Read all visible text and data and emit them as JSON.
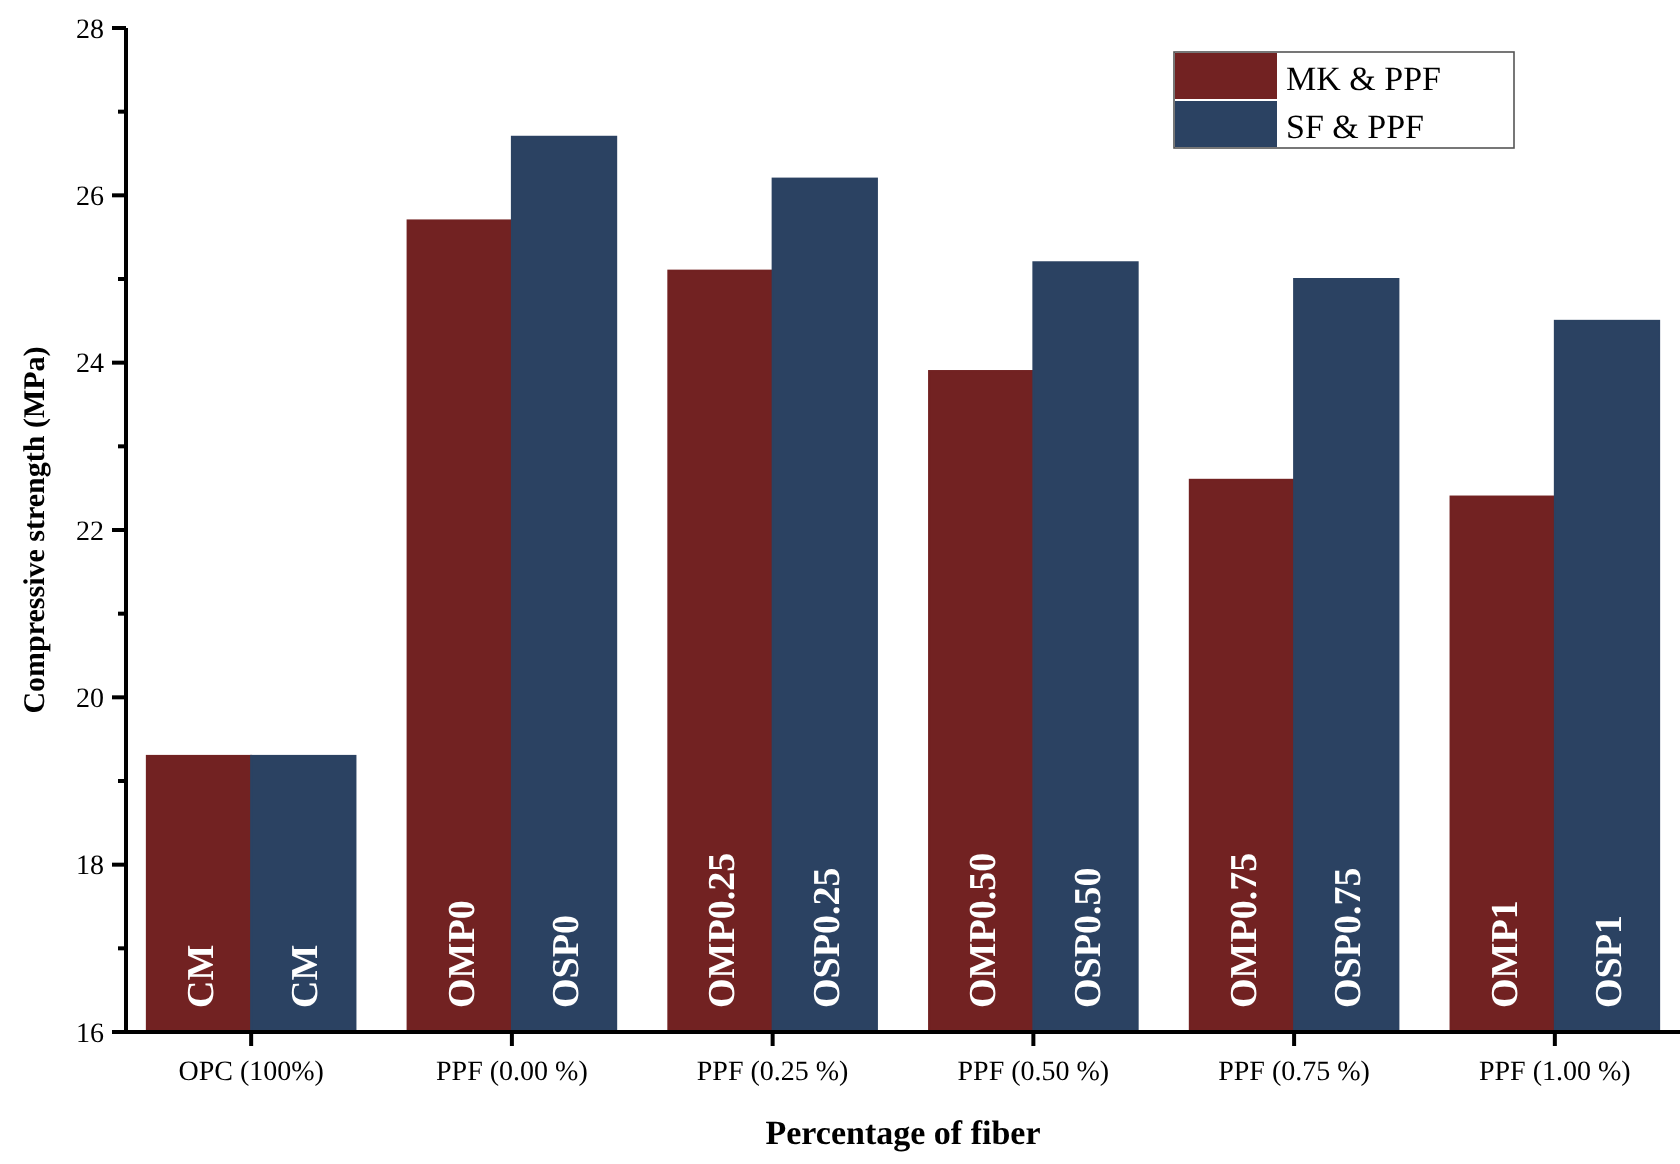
{
  "chart_data": {
    "type": "bar",
    "xlabel": "Percentage of fiber",
    "ylabel": "Compressive strength (MPa)",
    "categories": [
      "OPC (100%)",
      "PPF (0.00 %)",
      "PPF (0.25 %)",
      "PPF (0.50 %)",
      "PPF (0.75 %)",
      "PPF (1.00 %)"
    ],
    "series": [
      {
        "name": "MK & PPF",
        "color": "#722222",
        "values": [
          19.3,
          25.7,
          25.1,
          23.9,
          22.6,
          22.4
        ],
        "value_labels": [
          "CM",
          "OMP0",
          "OMP0.25",
          "OMP0.50",
          "OMP0.75",
          "OMP1"
        ]
      },
      {
        "name": "SF & PPF",
        "color": "#2b4262",
        "values": [
          19.3,
          26.7,
          26.2,
          25.2,
          25.0,
          24.5
        ],
        "value_labels": [
          "CM",
          "OSP0",
          "OSP0.25",
          "OSP0.50",
          "OSP0.75",
          "OSP1"
        ]
      }
    ],
    "ylim": [
      16,
      28
    ],
    "yticks": [
      16,
      {
        "value": 17,
        "label": null
      },
      18,
      {
        "value": 19,
        "label": null
      },
      20,
      {
        "value": 21,
        "label": null
      },
      22,
      {
        "value": 23,
        "label": null
      },
      24,
      {
        "value": 25,
        "label": null
      },
      26,
      {
        "value": 27,
        "label": null
      },
      28
    ],
    "legend": "top right",
    "grid": false
  }
}
